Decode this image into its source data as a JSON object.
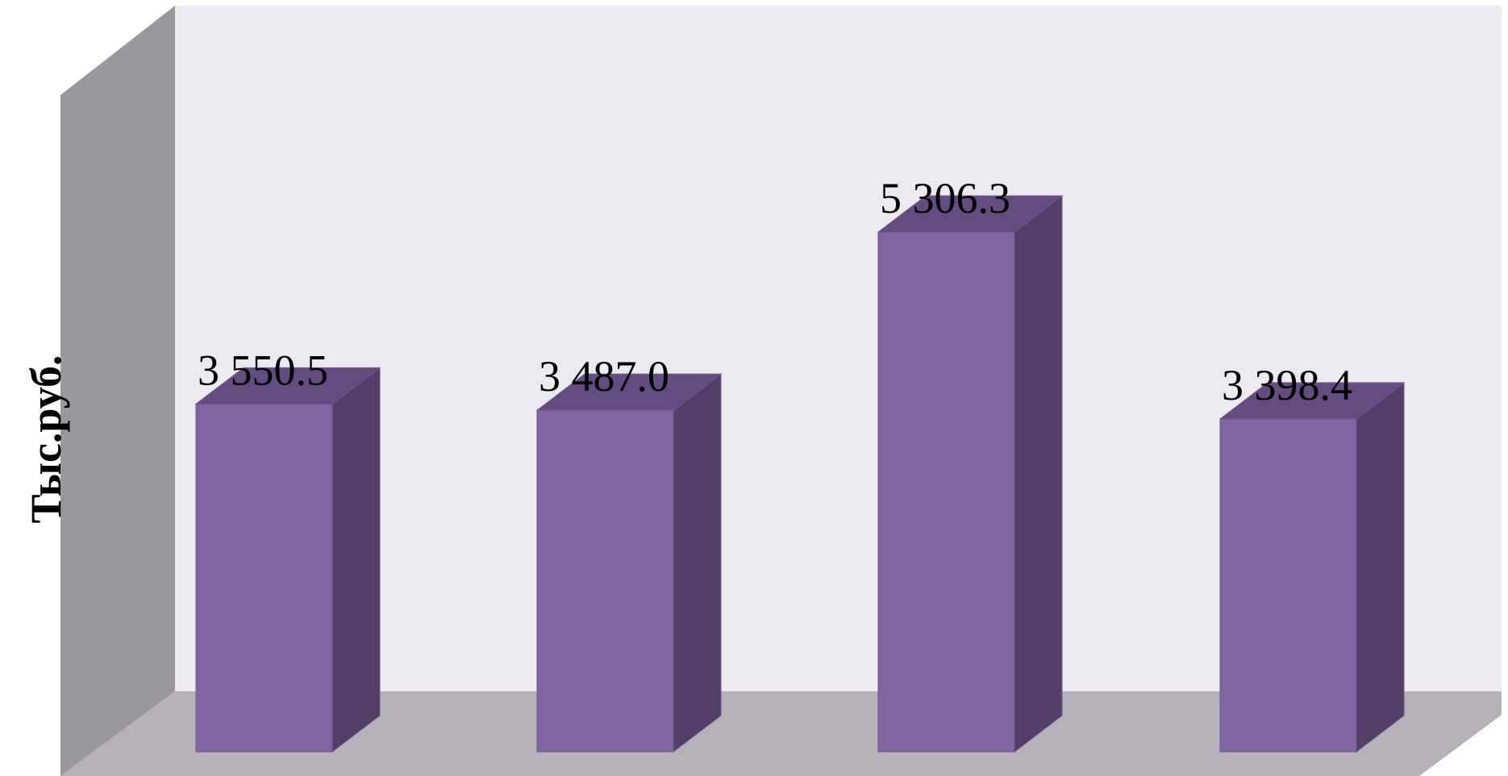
{
  "chart_data": {
    "type": "bar",
    "three_d": true,
    "categories": [
      "",
      "",
      "",
      ""
    ],
    "values": [
      3550.5,
      3487.0,
      5306.3,
      3398.4
    ],
    "data_labels": [
      "3 550.5",
      "3 487.0",
      "5 306.3",
      "3 398.4"
    ],
    "title": "",
    "xlabel": "",
    "ylabel": "Тыс.руб.",
    "ylim": [
      0,
      6000
    ],
    "grid": false,
    "legend": "none",
    "colors": {
      "bar_front": "#8065A0",
      "bar_side": "#523F68",
      "bar_top": "#654C80",
      "back_wall": "#ECE9F0",
      "side_wall": "#9A989D",
      "floor": "#B6B1B9"
    }
  }
}
